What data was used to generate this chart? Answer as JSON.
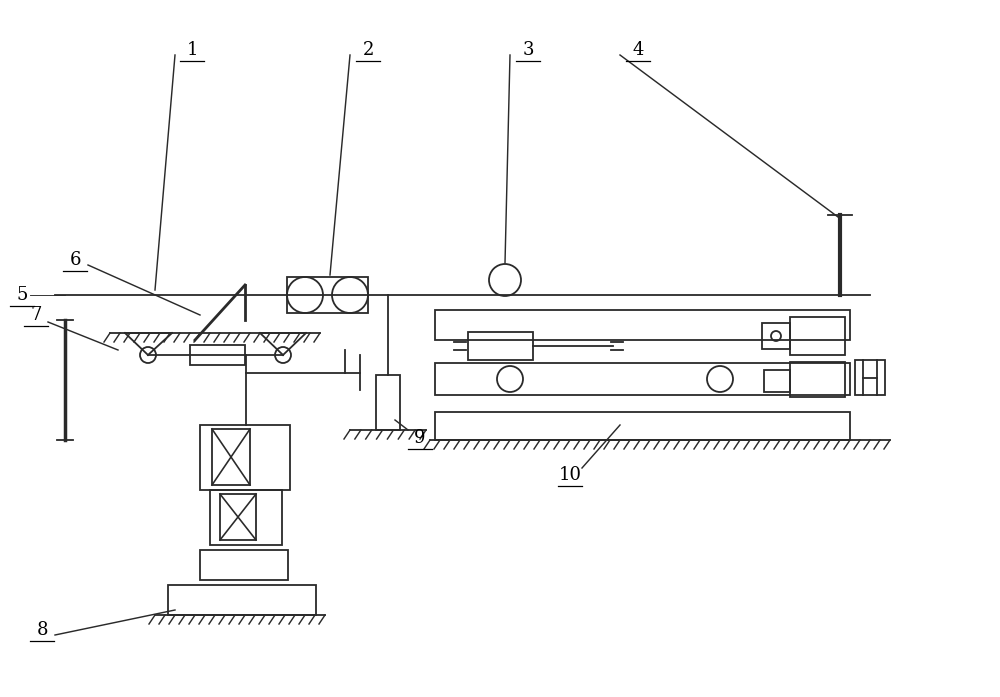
{
  "bg_color": "#ffffff",
  "line_color": "#2a2a2a",
  "lw": 1.3,
  "fig_width": 10.0,
  "fig_height": 6.97
}
